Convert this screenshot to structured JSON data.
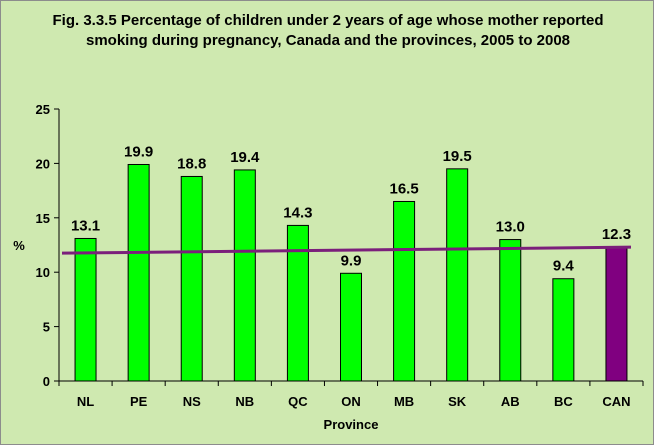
{
  "chart_data": {
    "type": "bar",
    "title": "Fig. 3.3.5 Percentage of children under 2 years of age whose mother reported smoking during pregnancy, Canada and the provinces, 2005 to 2008",
    "xlabel": "Province",
    "ylabel": "%",
    "categories": [
      "NL",
      "PE",
      "NS",
      "NB",
      "QC",
      "ON",
      "MB",
      "SK",
      "AB",
      "BC",
      "CAN"
    ],
    "values": [
      13.1,
      19.9,
      18.8,
      19.4,
      14.3,
      9.9,
      16.5,
      19.5,
      13.0,
      9.4,
      12.3
    ],
    "data_labels": [
      "13.1",
      "19.9",
      "18.8",
      "19.4",
      "14.3",
      "9.9",
      "16.5",
      "19.5",
      "13.0",
      "9.4",
      "12.3"
    ],
    "ylim": [
      0,
      25
    ],
    "yticks": [
      0,
      5,
      10,
      15,
      20,
      25
    ],
    "grid": false,
    "reference_line": {
      "value": 12.3,
      "color": "#7b1f7b"
    },
    "colors": {
      "bar": "#00ff00",
      "highlight_bar": "#800080",
      "bar_outline": "#000000",
      "background": "#cfe9b0"
    },
    "highlight_category": "CAN"
  }
}
